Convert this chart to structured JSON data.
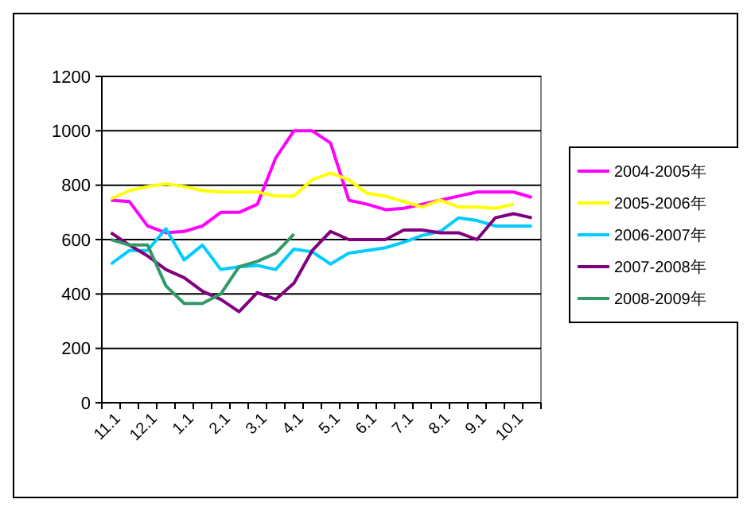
{
  "chart_data": {
    "type": "line",
    "categories": [
      "11.1",
      null,
      "12.1",
      null,
      "1.1",
      null,
      "2.1",
      null,
      "3.1",
      null,
      "4.1",
      null,
      "5.1",
      null,
      "6.1",
      null,
      "7.1",
      null,
      "8.1",
      null,
      "9.1",
      null,
      "10.1",
      null
    ],
    "ylim": [
      0,
      1200
    ],
    "yticks": [
      0,
      200,
      400,
      600,
      800,
      1000,
      1200
    ],
    "grid": "y",
    "legend": "right",
    "marker": "none",
    "line_style": "solid",
    "series": [
      {
        "name": "2004-2005年",
        "color": "#ff00ff",
        "values": [
          745,
          740,
          650,
          625,
          630,
          650,
          700,
          700,
          730,
          900,
          1000,
          1000,
          955,
          745,
          730,
          710,
          715,
          730,
          745,
          760,
          775,
          775,
          775,
          755
        ]
      },
      {
        "name": "2005-2006年",
        "color": "#ffff00",
        "values": [
          750,
          780,
          795,
          805,
          795,
          780,
          775,
          775,
          775,
          760,
          760,
          820,
          845,
          820,
          770,
          760,
          740,
          720,
          745,
          720,
          720,
          715,
          730,
          null
        ]
      },
      {
        "name": "2006-2007年",
        "color": "#00ccff",
        "values": [
          510,
          560,
          560,
          640,
          525,
          580,
          490,
          500,
          505,
          490,
          565,
          555,
          510,
          550,
          560,
          570,
          590,
          615,
          630,
          680,
          670,
          650,
          650,
          650
        ]
      },
      {
        "name": "2007-2008年",
        "color": "#800080",
        "values": [
          625,
          580,
          540,
          490,
          460,
          410,
          380,
          335,
          405,
          380,
          440,
          560,
          630,
          600,
          600,
          600,
          635,
          635,
          625,
          625,
          600,
          680,
          695,
          680
        ]
      },
      {
        "name": "2008-2009年",
        "color": "#339966",
        "values": [
          600,
          580,
          580,
          430,
          365,
          365,
          400,
          500,
          520,
          550,
          620,
          null,
          null,
          null,
          null,
          null,
          null,
          null,
          null,
          null,
          null,
          null,
          null,
          null
        ]
      }
    ]
  }
}
